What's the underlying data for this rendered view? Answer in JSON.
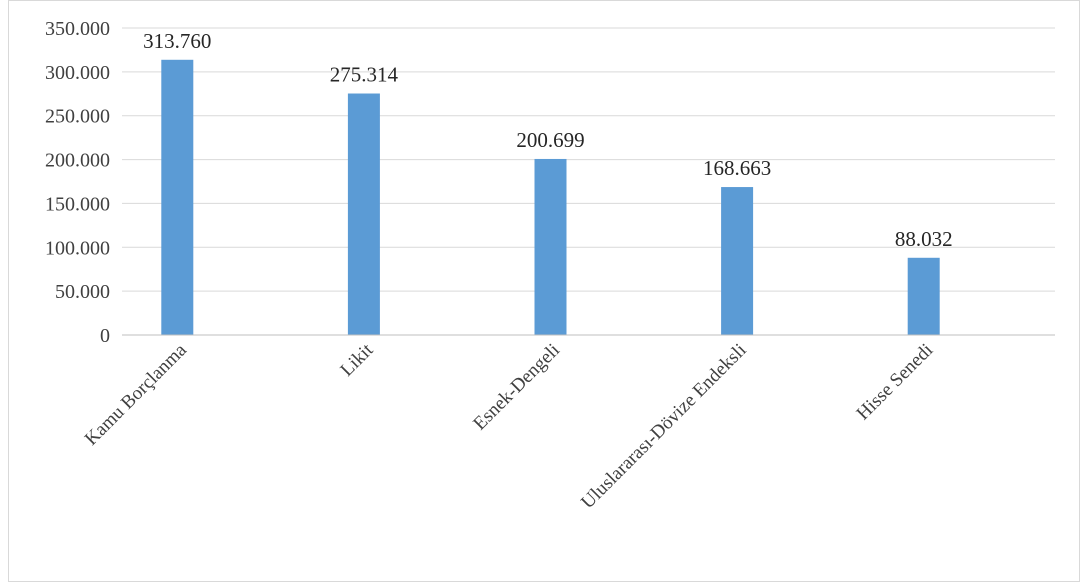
{
  "chart_data": {
    "type": "bar",
    "categories": [
      "Kamu Borçlanma",
      "Likit",
      "Esnek-Dengeli",
      "Uluslararası-Dövize Endeksli",
      "Hisse Senedi"
    ],
    "values": [
      313760,
      275314,
      200699,
      168663,
      88032
    ],
    "data_labels": [
      "313.760",
      "275.314",
      "200.699",
      "168.663",
      "88.032"
    ],
    "ylim": [
      0,
      350000
    ],
    "y_ticks": [
      0,
      50000,
      100000,
      150000,
      200000,
      250000,
      300000,
      350000
    ],
    "y_tick_labels": [
      "0",
      "50.000",
      "100.000",
      "150.000",
      "200.000",
      "250.000",
      "300.000",
      "350.000"
    ],
    "grid": true,
    "legend": "none",
    "bar_color": "#5b9bd5",
    "title": "",
    "xlabel": "",
    "ylabel": ""
  }
}
